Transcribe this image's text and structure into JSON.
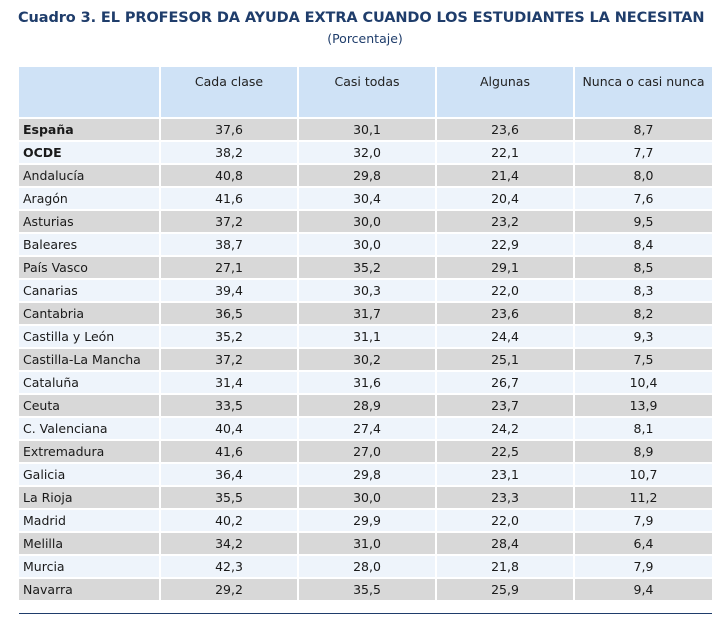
{
  "title": "Cuadro 3. EL PROFESOR DA AYUDA EXTRA CUANDO LOS ESTUDIANTES LA NECESITAN",
  "subtitle": "(Porcentaje)",
  "table": {
    "headers": [
      "",
      "Cada clase",
      "Casi todas",
      "Algunas",
      "Nunca o casi nunca"
    ],
    "rows": [
      {
        "region": "España",
        "values": [
          "37,6",
          "30,1",
          "23,6",
          "8,7"
        ],
        "bold": true
      },
      {
        "region": "OCDE",
        "values": [
          "38,2",
          "32,0",
          "22,1",
          "7,7"
        ],
        "bold": true
      },
      {
        "region": "Andalucía",
        "values": [
          "40,8",
          "29,8",
          "21,4",
          "8,0"
        ]
      },
      {
        "region": "Aragón",
        "values": [
          "41,6",
          "30,4",
          "20,4",
          "7,6"
        ]
      },
      {
        "region": "Asturias",
        "values": [
          "37,2",
          "30,0",
          "23,2",
          "9,5"
        ]
      },
      {
        "region": "Baleares",
        "values": [
          "38,7",
          "30,0",
          "22,9",
          "8,4"
        ]
      },
      {
        "region": "País Vasco",
        "values": [
          "27,1",
          "35,2",
          "29,1",
          "8,5"
        ]
      },
      {
        "region": "Canarias",
        "values": [
          "39,4",
          "30,3",
          "22,0",
          "8,3"
        ]
      },
      {
        "region": "Cantabria",
        "values": [
          "36,5",
          "31,7",
          "23,6",
          "8,2"
        ]
      },
      {
        "region": "Castilla y León",
        "values": [
          "35,2",
          "31,1",
          "24,4",
          "9,3"
        ]
      },
      {
        "region": "Castilla-La Mancha",
        "values": [
          "37,2",
          "30,2",
          "25,1",
          "7,5"
        ]
      },
      {
        "region": "Cataluña",
        "values": [
          "31,4",
          "31,6",
          "26,7",
          "10,4"
        ]
      },
      {
        "region": "Ceuta",
        "values": [
          "33,5",
          "28,9",
          "23,7",
          "13,9"
        ]
      },
      {
        "region": "C. Valenciana",
        "values": [
          "40,4",
          "27,4",
          "24,2",
          "8,1"
        ]
      },
      {
        "region": "Extremadura",
        "values": [
          "41,6",
          "27,0",
          "22,5",
          "8,9"
        ]
      },
      {
        "region": "Galicia",
        "values": [
          "36,4",
          "29,8",
          "23,1",
          "10,7"
        ]
      },
      {
        "region": "La Rioja",
        "values": [
          "35,5",
          "30,0",
          "23,3",
          "11,2"
        ]
      },
      {
        "region": "Madrid",
        "values": [
          "40,2",
          "29,9",
          "22,0",
          "7,9"
        ]
      },
      {
        "region": "Melilla",
        "values": [
          "34,2",
          "31,0",
          "28,4",
          "6,4"
        ]
      },
      {
        "region": "Murcia",
        "values": [
          "42,3",
          "28,0",
          "21,8",
          "7,9"
        ]
      },
      {
        "region": "Navarra",
        "values": [
          "29,2",
          "35,5",
          "25,9",
          "9,4"
        ]
      }
    ]
  }
}
